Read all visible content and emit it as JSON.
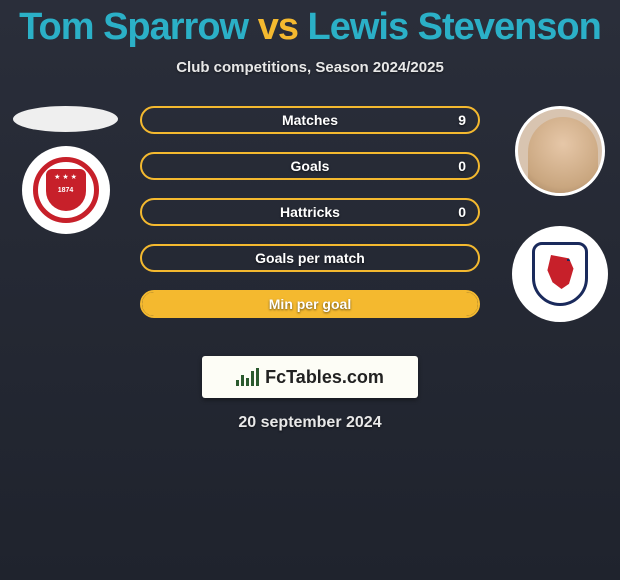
{
  "title": {
    "player1": "Tom Sparrow",
    "vs": "vs",
    "player2": "Lewis Stevenson",
    "color1": "#2bb0c7",
    "color_vs": "#f4b92f",
    "color2": "#2bb0c7"
  },
  "subtitle": "Club competitions, Season 2024/2025",
  "stats": {
    "bars": [
      {
        "label": "Matches",
        "left": "",
        "right": "9",
        "fill_pct": 0,
        "border": "#f4b92f",
        "fill": "#2bb0c7"
      },
      {
        "label": "Goals",
        "left": "",
        "right": "0",
        "fill_pct": 0,
        "border": "#f4b92f",
        "fill": "#2bb0c7"
      },
      {
        "label": "Hattricks",
        "left": "",
        "right": "0",
        "fill_pct": 0,
        "border": "#f4b92f",
        "fill": "#2bb0c7"
      },
      {
        "label": "Goals per match",
        "left": "",
        "right": "",
        "fill_pct": 0,
        "border": "#f4b92f",
        "fill": "#2bb0c7"
      },
      {
        "label": "Min per goal",
        "left": "",
        "right": "",
        "fill_pct": 100,
        "border": "#f4b92f",
        "fill": "#f4b92f"
      }
    ]
  },
  "footer": {
    "brand": "FcTables.com",
    "date": "20 september 2024"
  },
  "colors": {
    "accent_teal": "#2bb0c7",
    "accent_gold": "#f4b92f",
    "background_top": "#2a2e3a",
    "background_bottom": "#1f232d"
  }
}
